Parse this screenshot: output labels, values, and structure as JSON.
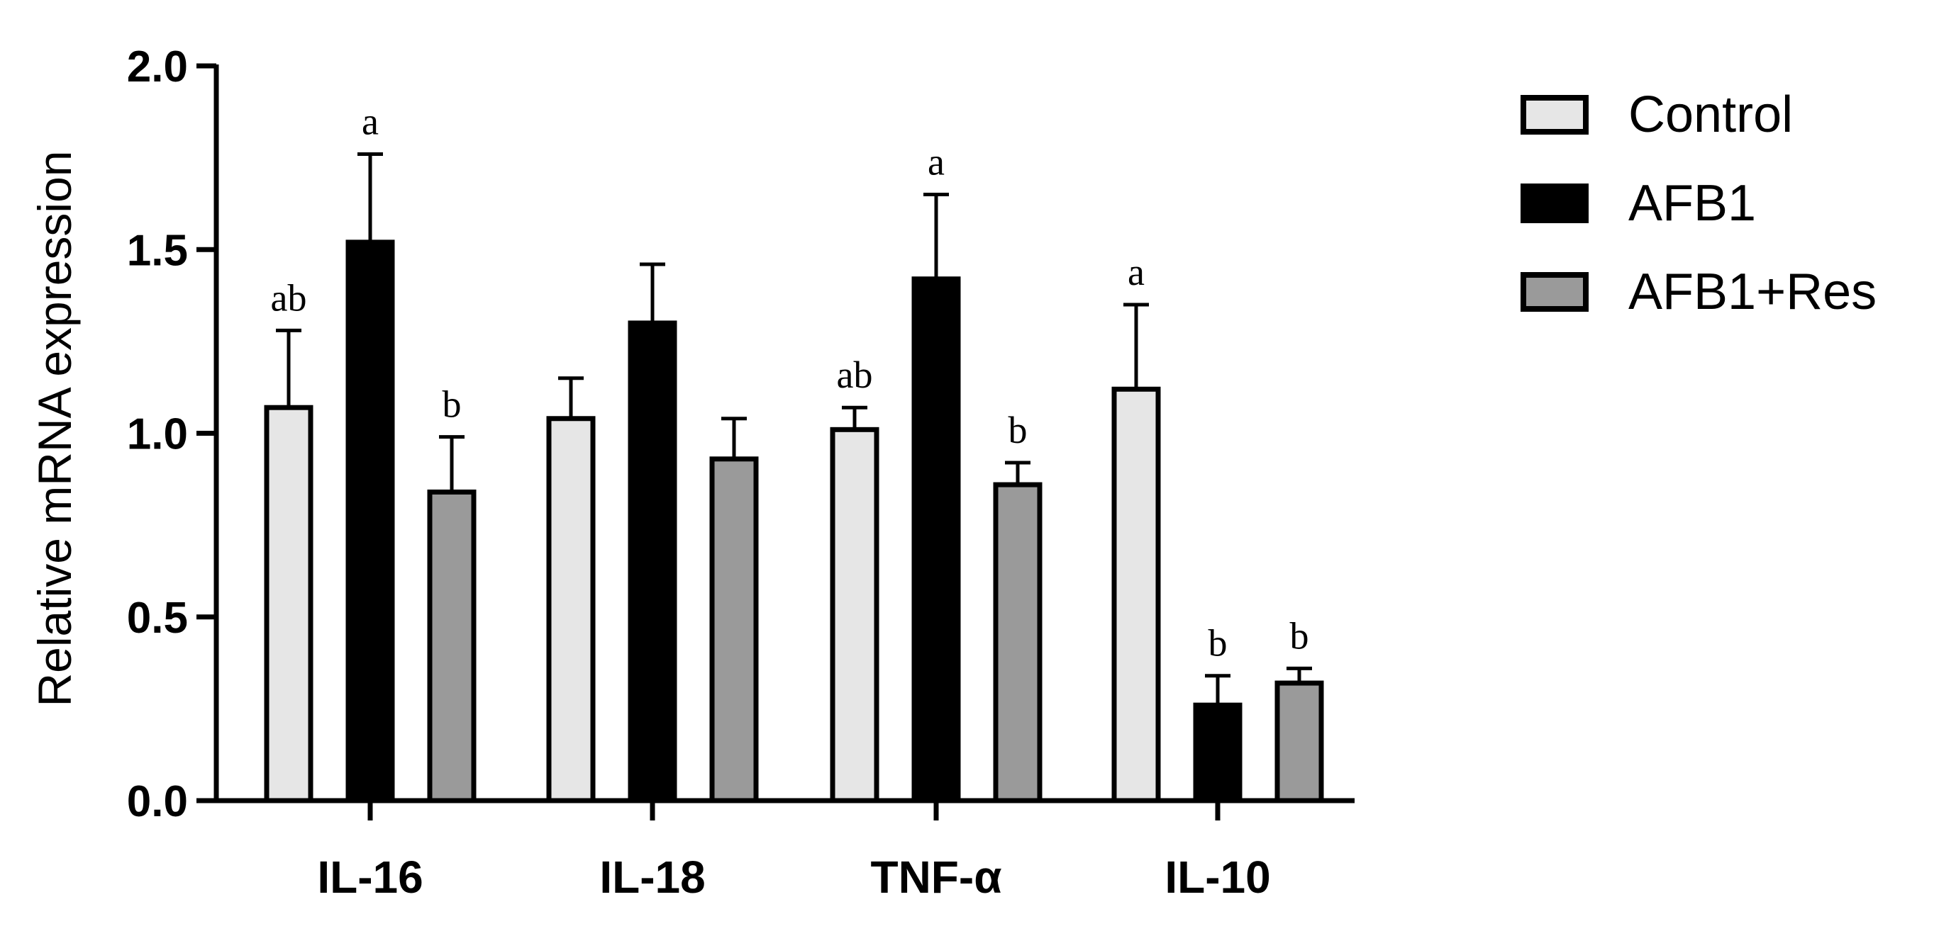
{
  "chart_data": {
    "type": "bar",
    "ylabel": "Relative mRNA expression",
    "xlabel": "",
    "ylim": [
      0,
      2.0
    ],
    "yticks": [
      "0.0",
      "0.5",
      "1.0",
      "1.5",
      "2.0"
    ],
    "ytick_values": [
      0,
      0.5,
      1.0,
      1.5,
      2.0
    ],
    "categories": [
      "IL-16",
      "IL-18",
      "TNF-α",
      "IL-10"
    ],
    "series": [
      {
        "name": "Control",
        "color": "#e6e6e6",
        "values": [
          1.07,
          1.04,
          1.01,
          1.12
        ],
        "errors": [
          0.21,
          0.11,
          0.06,
          0.23
        ],
        "labels": [
          "ab",
          "",
          "ab",
          "a"
        ]
      },
      {
        "name": "AFB1",
        "color": "#000000",
        "values": [
          1.52,
          1.3,
          1.42,
          0.26
        ],
        "errors": [
          0.24,
          0.16,
          0.23,
          0.08
        ],
        "labels": [
          "a",
          "",
          "a",
          "b"
        ]
      },
      {
        "name": "AFB1+Res",
        "color": "#9a9a9a",
        "values": [
          0.84,
          0.93,
          0.86,
          0.32
        ],
        "errors": [
          0.15,
          0.11,
          0.06,
          0.04
        ],
        "labels": [
          "b",
          "",
          "b",
          "b"
        ]
      }
    ],
    "legend_position": "top-right"
  }
}
